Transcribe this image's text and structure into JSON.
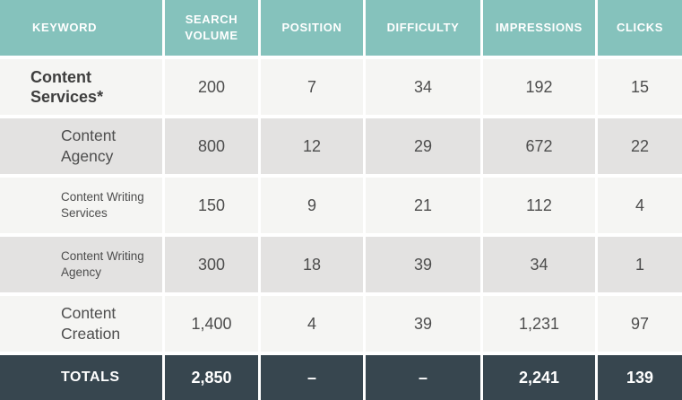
{
  "chart_data": {
    "type": "table",
    "columns": [
      "KEYWORD",
      "SEARCH VOLUME",
      "POSITION",
      "DIFFICULTY",
      "IMPRESSIONS",
      "CLICKS"
    ],
    "rows": [
      {
        "keyword": "Content Services*",
        "search_volume": "200",
        "position": "7",
        "difficulty": "34",
        "impressions": "192",
        "clicks": "15",
        "style": "primary-bold"
      },
      {
        "keyword": "Content Agency",
        "search_volume": "800",
        "position": "12",
        "difficulty": "29",
        "impressions": "672",
        "clicks": "22",
        "style": "indented"
      },
      {
        "keyword": "Content Writing Services",
        "search_volume": "150",
        "position": "9",
        "difficulty": "21",
        "impressions": "112",
        "clicks": "4",
        "style": "indented-small"
      },
      {
        "keyword": "Content Writing Agency",
        "search_volume": "300",
        "position": "18",
        "difficulty": "39",
        "impressions": "34",
        "clicks": "1",
        "style": "indented-small"
      },
      {
        "keyword": "Content Creation",
        "search_volume": "1,400",
        "position": "4",
        "difficulty": "39",
        "impressions": "1,231",
        "clicks": "97",
        "style": "indented"
      }
    ],
    "totals": {
      "keyword": "TOTALS",
      "search_volume": "2,850",
      "position": "–",
      "difficulty": "–",
      "impressions": "2,241",
      "clicks": "139"
    },
    "layout": {
      "shading": "alternating-rows",
      "gridlines": "white-gutters"
    }
  },
  "colors": {
    "header_bg": "#85c2bc",
    "header_text": "#ffffff",
    "row_light_bg": "#f5f5f3",
    "row_shaded_bg": "#e3e2e1",
    "totals_bg": "#37464f",
    "totals_text": "#ffffff",
    "body_text": "#4d4d4d",
    "gutter": "#ffffff"
  }
}
